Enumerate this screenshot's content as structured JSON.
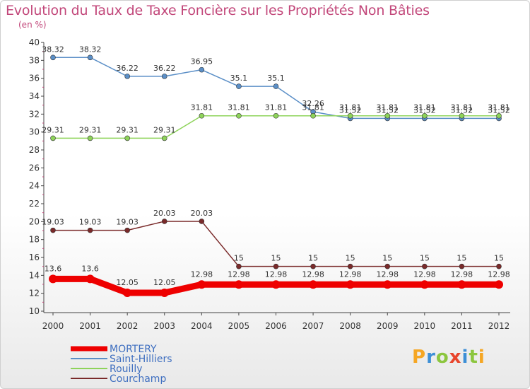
{
  "chart_data": {
    "type": "line",
    "title": "Evolution du Taux de Taxe Foncière sur les Propriétés Non Bâties",
    "subtitle": "(en %)",
    "x": [
      "2000",
      "2001",
      "2002",
      "2003",
      "2004",
      "2005",
      "2006",
      "2007",
      "2008",
      "2009",
      "2010",
      "2011",
      "2012"
    ],
    "ylim": [
      10,
      40
    ],
    "yticks": [
      "10",
      "12",
      "14",
      "16",
      "18",
      "20",
      "22",
      "24",
      "26",
      "28",
      "30",
      "32",
      "34",
      "36",
      "38",
      "40"
    ],
    "grid": false,
    "legend_position": "bottom-left",
    "series": [
      {
        "name": "Saint-Hilliers",
        "color": "#5b8fc7",
        "values": [
          38.32,
          38.32,
          36.22,
          36.22,
          36.95,
          35.1,
          35.1,
          32.26,
          31.52,
          31.52,
          31.52,
          31.52,
          31.52
        ],
        "labels": [
          "38.32",
          "38.32",
          "36.22",
          "36.22",
          "36.95",
          "35.1",
          "35.1",
          "32.26",
          "31.52",
          "31.52",
          "31.52",
          "31.52",
          "31.52"
        ]
      },
      {
        "name": "Rouilly",
        "color": "#8ed35a",
        "values": [
          29.31,
          29.31,
          29.31,
          29.31,
          31.81,
          31.81,
          31.81,
          31.81,
          31.81,
          31.81,
          31.81,
          31.81,
          31.81
        ],
        "labels": [
          "29.31",
          "29.31",
          "29.31",
          "29.31",
          "31.81",
          "31.81",
          "31.81",
          "31.81",
          "31.81",
          "31.81",
          "31.81",
          "31.81",
          "31.81"
        ]
      },
      {
        "name": "Courchamp",
        "color": "#7a2a2a",
        "values": [
          19.03,
          19.03,
          19.03,
          20.03,
          20.03,
          15,
          15,
          15,
          15,
          15,
          15,
          15,
          15
        ],
        "labels": [
          "19.03",
          "19.03",
          "19.03",
          "20.03",
          "20.03",
          "15",
          "15",
          "15",
          "15",
          "15",
          "15",
          "15",
          "15"
        ]
      },
      {
        "name": "MORTERY",
        "color": "#ee0000",
        "values": [
          13.6,
          13.6,
          12.05,
          12.05,
          12.98,
          12.98,
          12.98,
          12.98,
          12.98,
          12.98,
          12.98,
          12.98,
          12.98
        ],
        "labels": [
          "13.6",
          "13.6",
          "12.05",
          "12.05",
          "12.98",
          "12.98",
          "12.98",
          "12.98",
          "12.98",
          "12.98",
          "12.98",
          "12.98",
          "12.98"
        ]
      }
    ],
    "legend": [
      {
        "name": "MORTERY",
        "color": "#ee0000"
      },
      {
        "name": "Saint-Hilliers",
        "color": "#5b8fc7"
      },
      {
        "name": "Rouilly",
        "color": "#8ed35a"
      },
      {
        "name": "Courchamp",
        "color": "#7a2a2a"
      }
    ]
  },
  "watermark": {
    "text": "Proxiti",
    "letters": [
      {
        "ch": "P",
        "color": "#f5a623"
      },
      {
        "ch": "r",
        "color": "#3d8fd6"
      },
      {
        "ch": "o",
        "color": "#8cc63f"
      },
      {
        "ch": "x",
        "color": "#e8452c"
      },
      {
        "ch": "i",
        "color": "#3d8fd6"
      },
      {
        "ch": "t",
        "color": "#8cc63f"
      },
      {
        "ch": "i",
        "color": "#f5a623"
      }
    ]
  }
}
